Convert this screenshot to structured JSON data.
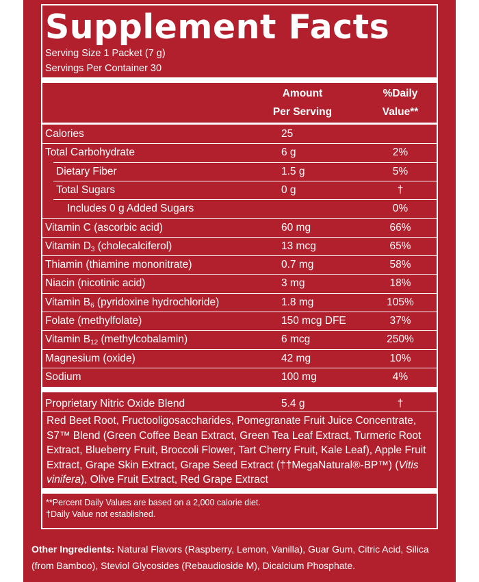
{
  "title": "Supplement Facts",
  "serving_size": "Serving Size 1 Packet (7 g)",
  "servings_per_container": "Servings Per Container 30",
  "header": {
    "amount_line1": "Amount",
    "amount_line2": "Per Serving",
    "dv_line1": "%Daily",
    "dv_line2": "Value**"
  },
  "rows": [
    {
      "name": "Calories",
      "amount": "25",
      "dv": ""
    },
    {
      "name": "Total Carbohydrate",
      "amount": "6 g",
      "dv": "2%"
    },
    {
      "name": "Dietary Fiber",
      "amount": "1.5 g",
      "dv": "5%"
    },
    {
      "name": "Total Sugars",
      "amount": "0 g",
      "dv": "†"
    },
    {
      "name": "Includes 0 g Added Sugars",
      "amount": "",
      "dv": "0%"
    },
    {
      "name": "Vitamin C (ascorbic acid)",
      "amount": "60 mg",
      "dv": "66%"
    },
    {
      "name_pre": "Vitamin D",
      "name_sub": "3",
      "name_post": " (cholecalciferol)",
      "amount": "13 mcg",
      "dv": "65%"
    },
    {
      "name": "Thiamin (thiamine mononitrate)",
      "amount": "0.7 mg",
      "dv": "58%"
    },
    {
      "name": "Niacin (nicotinic acid)",
      "amount": "3 mg",
      "dv": "18%"
    },
    {
      "name_pre": "Vitamin B",
      "name_sub": "6",
      "name_post": " (pyridoxine hydrochloride)",
      "amount": "1.8 mg",
      "dv": "105%"
    },
    {
      "name": "Folate (methylfolate)",
      "amount": "150 mcg DFE",
      "dv": "37%"
    },
    {
      "name_pre": "Vitamin B",
      "name_sub": "12",
      "name_post": " (methylcobalamin)",
      "amount": "6 mcg",
      "dv": "250%"
    },
    {
      "name": "Magnesium (oxide)",
      "amount": "42 mg",
      "dv": "10%"
    },
    {
      "name": "Sodium",
      "amount": "100 mg",
      "dv": "4%"
    }
  ],
  "blend": {
    "name": "Proprietary Nitric Oxide Blend",
    "amount": "5.4 g",
    "dv": "†",
    "ingredients_a": "Red Beet Root, Fructooligosaccharides, Pomegranate Fruit Juice Concentrate, S7™ Blend (Green Coffee Bean Extract, Green Tea Leaf Extract, Turmeric Root Extract, Blueberry Fruit, Broccoli Flower, Tart Cherry Fruit, Kale Leaf), Apple Fruit Extract, Grape Skin Extract, Grape Seed Extract (††MegaNatural®-BP™) (",
    "ingredients_italic": "Vitis vinifera",
    "ingredients_b": "), Olive Fruit Extract, Red Grape Extract"
  },
  "footnotes": {
    "percent_dv": "**Percent Daily Values are based on a 2,000 calorie diet.",
    "dv_not_established": "†Daily Value not established."
  },
  "other_ingredients": {
    "label": "Other Ingredients:",
    "text": " Natural Flavors (Raspberry, Lemon, Vanilla), Guar Gum, Citric Acid, Silica (from Bamboo), Steviol Glycosides (Rebaudioside M), Dicalcium Phosphate."
  },
  "colors": {
    "panel": "#b2202d",
    "text": "#ffffff"
  }
}
